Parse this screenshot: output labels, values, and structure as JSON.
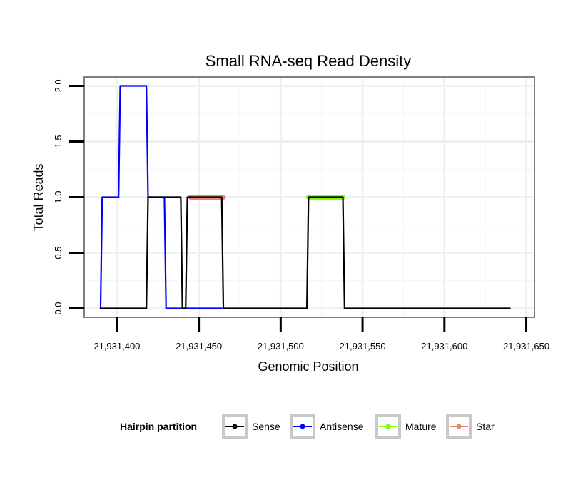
{
  "chart_data": {
    "type": "line",
    "title": "Small RNA-seq Read Density",
    "xlabel": "Genomic Position",
    "ylabel": "Total Reads",
    "xlim": [
      21931380,
      21931655
    ],
    "ylim": [
      -0.08,
      2.08
    ],
    "x_ticks": [
      21931400,
      21931450,
      21931500,
      21931550,
      21931600,
      21931650
    ],
    "x_tick_labels": [
      "21,931,400",
      "21,931,450",
      "21,931,500",
      "21,931,550",
      "21,931,600",
      "21,931,650"
    ],
    "y_ticks": [
      0,
      0.5,
      1,
      1.5,
      2
    ],
    "y_tick_labels": [
      "0.0",
      "0.5",
      "1.0",
      "1.5",
      "2.0"
    ],
    "grid": true,
    "legend": {
      "title": "Hairpin partition",
      "placement": "bottom",
      "entries": [
        {
          "name": "Sense",
          "color": "#000000"
        },
        {
          "name": "Antisense",
          "color": "#0000ff"
        },
        {
          "name": "Mature",
          "color": "#7fff00"
        },
        {
          "name": "Star",
          "color": "#f08070"
        }
      ]
    },
    "series": [
      {
        "name": "Antisense",
        "color": "#0000ff",
        "width": 2.2,
        "x": [
          21931390,
          21931391,
          21931401,
          21931402,
          21931418,
          21931419,
          21931429,
          21931430,
          21931440,
          21931441,
          21931464
        ],
        "y": [
          0,
          1,
          1,
          2,
          2,
          1,
          1,
          0,
          0,
          0,
          0
        ]
      },
      {
        "name": "Star",
        "color": "#f08070",
        "width": 7,
        "x": [
          21931445,
          21931465
        ],
        "y": [
          1,
          1
        ]
      },
      {
        "name": "Mature",
        "color": "#7fff00",
        "width": 7,
        "x": [
          21931517,
          21931538
        ],
        "y": [
          1,
          1
        ]
      },
      {
        "name": "Sense",
        "color": "#000000",
        "width": 2.2,
        "x": [
          21931390,
          21931418,
          21931419,
          21931439,
          21931440,
          21931442,
          21931443,
          21931464,
          21931465,
          21931516,
          21931517,
          21931538,
          21931539,
          21931640
        ],
        "y": [
          0,
          0,
          1,
          1,
          0,
          0,
          1,
          1,
          0,
          0,
          1,
          1,
          0,
          0
        ]
      }
    ]
  }
}
